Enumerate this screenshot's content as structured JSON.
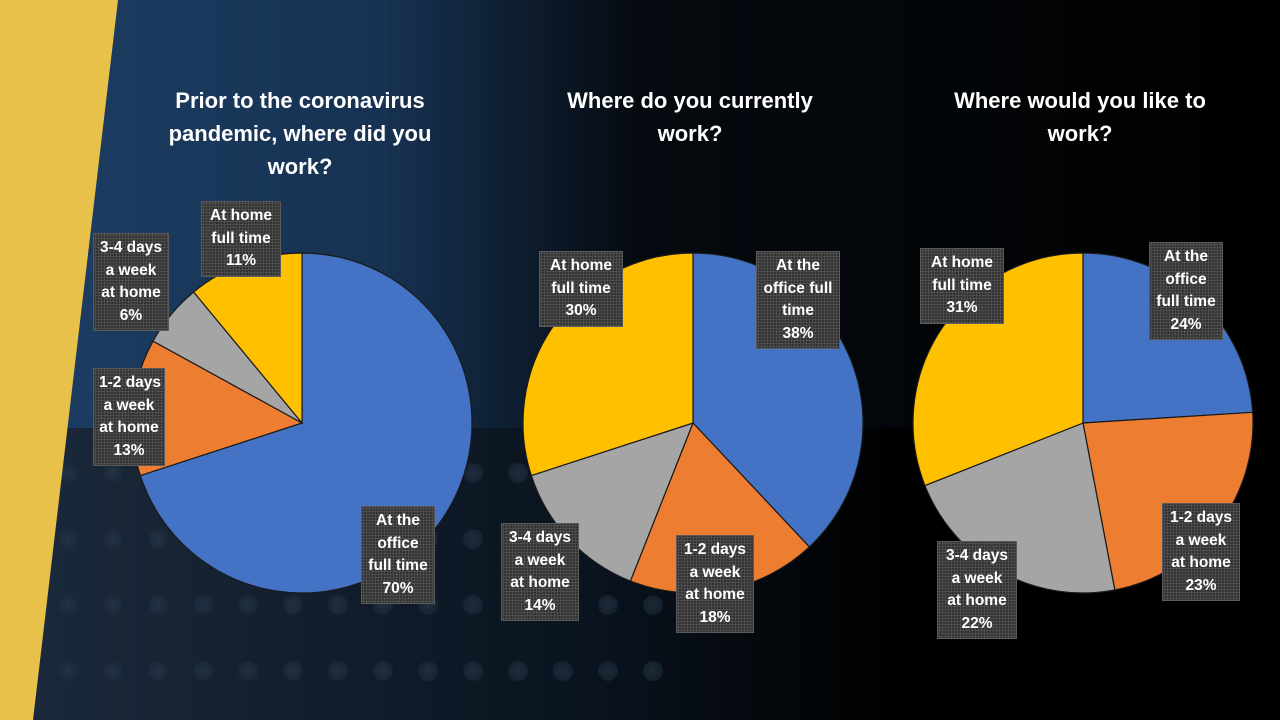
{
  "colors": {
    "blue": "#4472c4",
    "orange": "#ed7d31",
    "gray": "#a5a5a5",
    "yellow": "#ffc000",
    "accent_stripe": "#e8c14a",
    "navy": "#1f3f63"
  },
  "chart_data": [
    {
      "type": "pie",
      "title": "Prior to the coronavirus pandemic, where did you work?",
      "slices": [
        {
          "lines": [
            "At the",
            "office",
            "full time"
          ],
          "value": 70,
          "value_label": "70%",
          "color": "#4472c4"
        },
        {
          "lines": [
            "1-2 days",
            "a week",
            "at home"
          ],
          "value": 13,
          "value_label": "13%",
          "color": "#ed7d31"
        },
        {
          "lines": [
            "3-4 days",
            "a week",
            "at home"
          ],
          "value": 6,
          "value_label": "6%",
          "color": "#a5a5a5"
        },
        {
          "lines": [
            "At home",
            "full time"
          ],
          "value": 11,
          "value_label": "11%",
          "color": "#ffc000"
        }
      ]
    },
    {
      "type": "pie",
      "title": "Where do you currently work?",
      "slices": [
        {
          "lines": [
            "At the",
            "office full",
            "time"
          ],
          "value": 38,
          "value_label": "38%",
          "color": "#4472c4"
        },
        {
          "lines": [
            "1-2 days",
            "a week",
            "at home"
          ],
          "value": 18,
          "value_label": "18%",
          "color": "#ed7d31"
        },
        {
          "lines": [
            "3-4 days",
            "a week",
            "at home"
          ],
          "value": 14,
          "value_label": "14%",
          "color": "#a5a5a5"
        },
        {
          "lines": [
            "At home",
            "full time"
          ],
          "value": 30,
          "value_label": "30%",
          "color": "#ffc000"
        }
      ]
    },
    {
      "type": "pie",
      "title": "Where would you like to work?",
      "slices": [
        {
          "lines": [
            "At the",
            "office",
            "full time"
          ],
          "value": 24,
          "value_label": "24%",
          "color": "#4472c4"
        },
        {
          "lines": [
            "1-2 days",
            "a week",
            "at home"
          ],
          "value": 23,
          "value_label": "23%",
          "color": "#ed7d31"
        },
        {
          "lines": [
            "3-4 days",
            "a week",
            "at home"
          ],
          "value": 22,
          "value_label": "22%",
          "color": "#a5a5a5"
        },
        {
          "lines": [
            "At home",
            "full time"
          ],
          "value": 31,
          "value_label": "31%",
          "color": "#ffc000"
        }
      ]
    }
  ]
}
